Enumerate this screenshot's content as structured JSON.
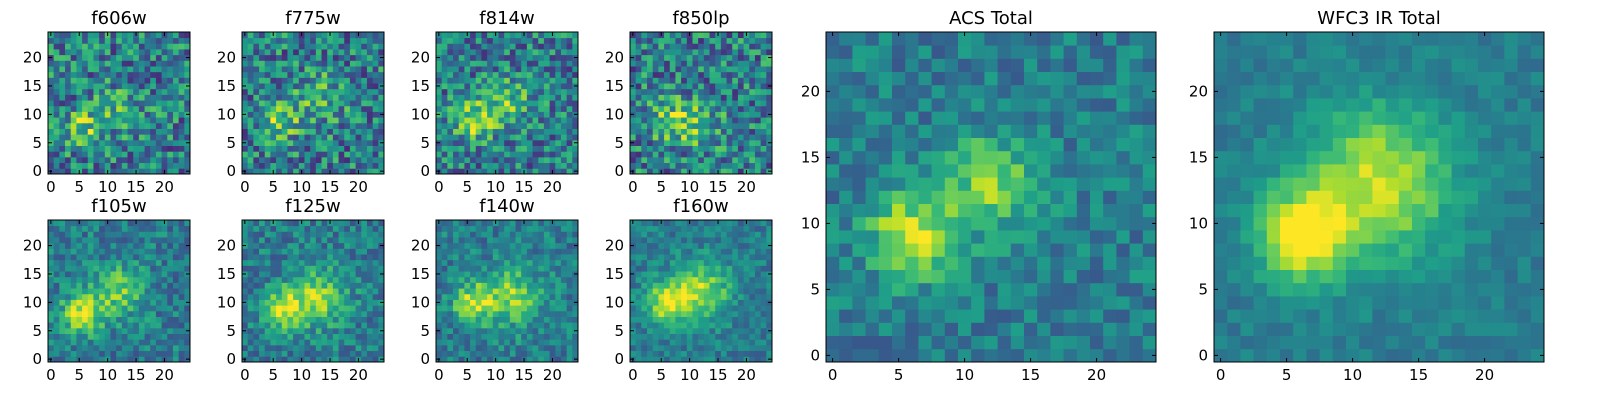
{
  "chart_data": [
    {
      "type": "heatmap",
      "title": "f606w",
      "extent": [
        0,
        24
      ],
      "xticks": [
        0,
        5,
        10,
        15,
        20
      ],
      "yticks": [
        0,
        5,
        10,
        15,
        20
      ],
      "colormap": "viridis",
      "noise": 0.3,
      "seed": 11,
      "blobs": [
        {
          "x": 5.5,
          "y": 7.5,
          "sx": 2.3,
          "amp": 0.35
        },
        {
          "x": 12,
          "y": 11,
          "sx": 3,
          "amp": 0.2
        }
      ]
    },
    {
      "type": "heatmap",
      "title": "f775w",
      "extent": [
        0,
        24
      ],
      "xticks": [
        0,
        5,
        10,
        15,
        20
      ],
      "yticks": [
        0,
        5,
        10,
        15,
        20
      ],
      "colormap": "viridis",
      "noise": 0.3,
      "seed": 23,
      "blobs": [
        {
          "x": 6,
          "y": 9,
          "sx": 2.3,
          "amp": 0.4
        },
        {
          "x": 13,
          "y": 13,
          "sx": 3,
          "amp": 0.25
        }
      ]
    },
    {
      "type": "heatmap",
      "title": "f814w",
      "extent": [
        0,
        24
      ],
      "xticks": [
        0,
        5,
        10,
        15,
        20
      ],
      "yticks": [
        0,
        5,
        10,
        15,
        20
      ],
      "colormap": "viridis",
      "noise": 0.28,
      "seed": 37,
      "blobs": [
        {
          "x": 6,
          "y": 9,
          "sx": 2.3,
          "amp": 0.45
        },
        {
          "x": 12,
          "y": 12,
          "sx": 3,
          "amp": 0.3
        }
      ]
    },
    {
      "type": "heatmap",
      "title": "f850lp",
      "extent": [
        0,
        24
      ],
      "xticks": [
        0,
        5,
        10,
        15,
        20
      ],
      "yticks": [
        0,
        5,
        10,
        15,
        20
      ],
      "colormap": "viridis",
      "noise": 0.3,
      "seed": 41,
      "blobs": [
        {
          "x": 7,
          "y": 9,
          "sx": 2.8,
          "amp": 0.3
        },
        {
          "x": 12,
          "y": 8,
          "sx": 3,
          "amp": 0.2
        }
      ]
    },
    {
      "type": "heatmap",
      "title": "f105w",
      "extent": [
        0,
        24
      ],
      "xticks": [
        0,
        5,
        10,
        15,
        20
      ],
      "yticks": [
        0,
        5,
        10,
        15,
        20
      ],
      "colormap": "viridis",
      "noise": 0.18,
      "seed": 53,
      "blobs": [
        {
          "x": 5.5,
          "y": 8,
          "sx": 2.5,
          "amp": 0.5
        },
        {
          "x": 12,
          "y": 12,
          "sx": 3.2,
          "amp": 0.35
        }
      ]
    },
    {
      "type": "heatmap",
      "title": "f125w",
      "extent": [
        0,
        24
      ],
      "xticks": [
        0,
        5,
        10,
        15,
        20
      ],
      "yticks": [
        0,
        5,
        10,
        15,
        20
      ],
      "colormap": "viridis",
      "noise": 0.18,
      "seed": 67,
      "blobs": [
        {
          "x": 7,
          "y": 9,
          "sx": 2.5,
          "amp": 0.45
        },
        {
          "x": 13,
          "y": 11,
          "sx": 3.5,
          "amp": 0.4
        }
      ]
    },
    {
      "type": "heatmap",
      "title": "f140w",
      "extent": [
        0,
        24
      ],
      "xticks": [
        0,
        5,
        10,
        15,
        20
      ],
      "yticks": [
        0,
        5,
        10,
        15,
        20
      ],
      "colormap": "viridis",
      "noise": 0.17,
      "seed": 79,
      "blobs": [
        {
          "x": 6,
          "y": 10,
          "sx": 2.5,
          "amp": 0.45
        },
        {
          "x": 13,
          "y": 11,
          "sx": 3.5,
          "amp": 0.4
        }
      ]
    },
    {
      "type": "heatmap",
      "title": "f160w",
      "extent": [
        0,
        24
      ],
      "xticks": [
        0,
        5,
        10,
        15,
        20
      ],
      "yticks": [
        0,
        5,
        10,
        15,
        20
      ],
      "colormap": "viridis",
      "noise": 0.14,
      "seed": 83,
      "blobs": [
        {
          "x": 6,
          "y": 10,
          "sx": 2.5,
          "amp": 0.5
        },
        {
          "x": 12,
          "y": 12,
          "sx": 3.5,
          "amp": 0.45
        }
      ]
    },
    {
      "type": "heatmap",
      "title": "ACS Total",
      "extent": [
        0,
        24
      ],
      "xticks": [
        0,
        5,
        10,
        15,
        20
      ],
      "yticks": [
        0,
        5,
        10,
        15,
        20
      ],
      "colormap": "viridis",
      "noise": 0.15,
      "seed": 97,
      "blobs": [
        {
          "x": 6,
          "y": 9,
          "sx": 2.2,
          "amp": 0.55
        },
        {
          "x": 12,
          "y": 13,
          "sx": 2.5,
          "amp": 0.4
        }
      ]
    },
    {
      "type": "heatmap",
      "title": "WFC3 IR Total",
      "extent": [
        0,
        24
      ],
      "xticks": [
        0,
        5,
        10,
        15,
        20
      ],
      "yticks": [
        0,
        5,
        10,
        15,
        20
      ],
      "colormap": "viridis",
      "noise": 0.08,
      "seed": 101,
      "blobs": [
        {
          "x": 6,
          "y": 9,
          "sx": 2.3,
          "amp": 0.6
        },
        {
          "x": 12,
          "y": 13,
          "sx": 4,
          "amp": 0.5
        }
      ]
    }
  ]
}
